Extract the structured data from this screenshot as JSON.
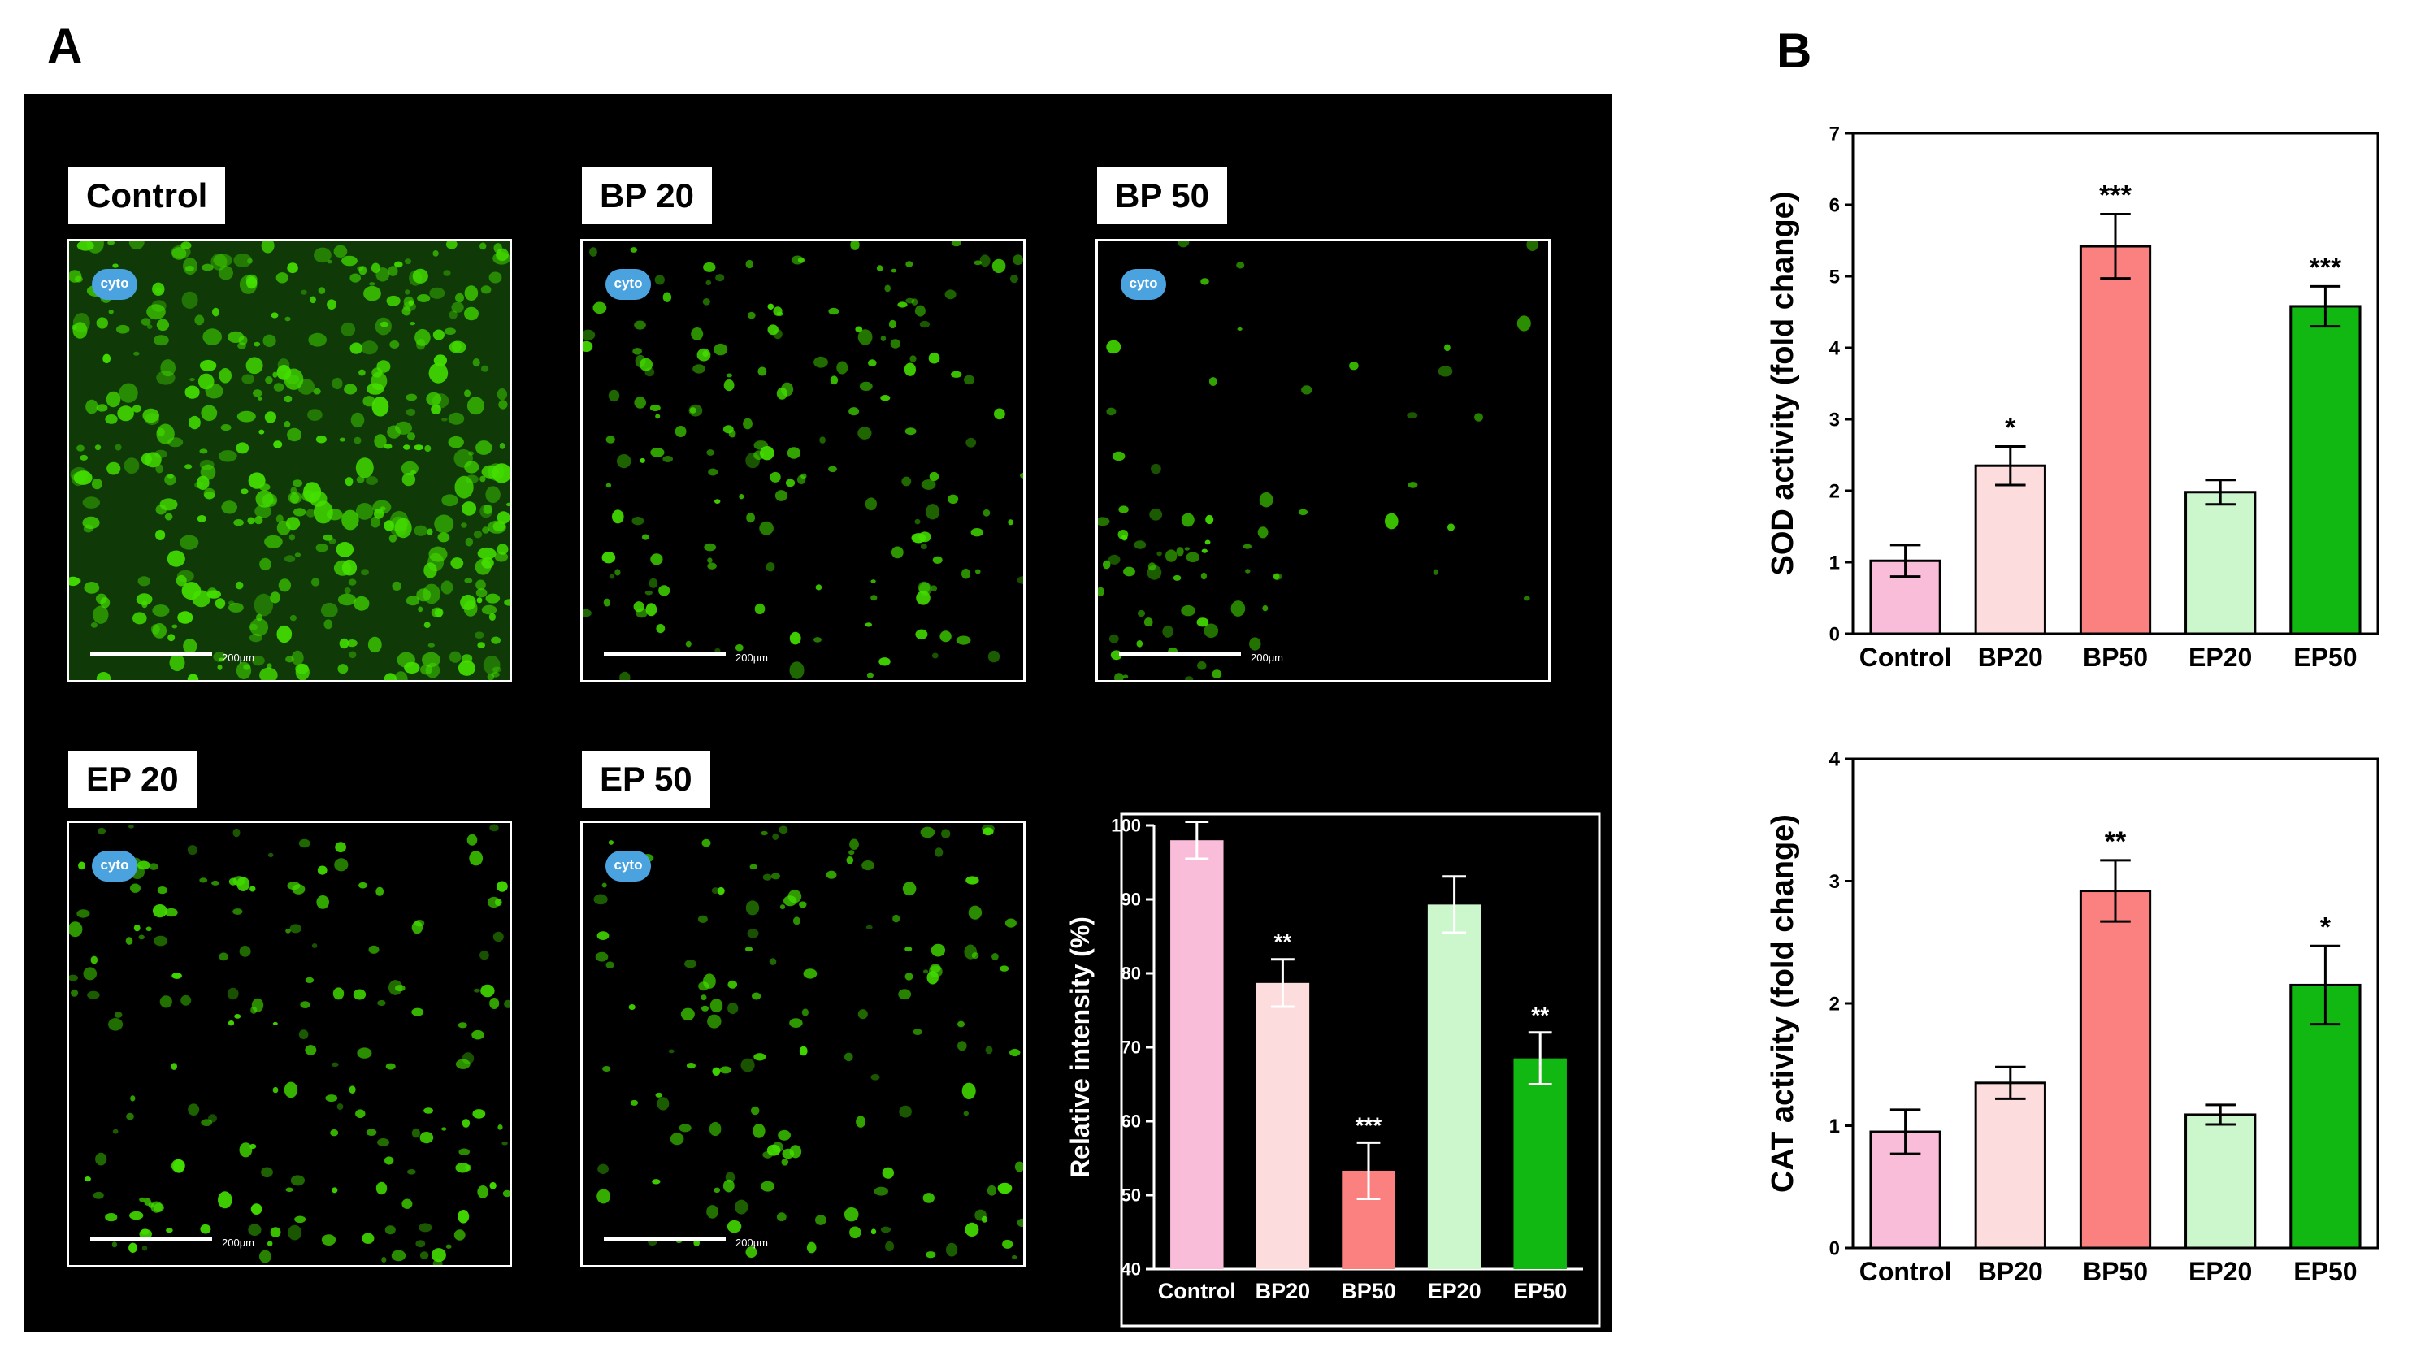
{
  "panel_labels": {
    "a": "A",
    "b": "B"
  },
  "micrographs": [
    {
      "label": "Control",
      "logo": "cyto",
      "scale": "200μm",
      "density": "high"
    },
    {
      "label": "BP 20",
      "logo": "cyto",
      "scale": "200μm",
      "density": "medium"
    },
    {
      "label": "BP 50",
      "logo": "cyto",
      "scale": "200μm",
      "density": "low"
    },
    {
      "label": "EP 20",
      "logo": "cyto",
      "scale": "200μm",
      "density": "medium"
    },
    {
      "label": "EP 50",
      "logo": "cyto",
      "scale": "200μm",
      "density": "medium-low"
    }
  ],
  "colors": {
    "Control": "#f9bcd9",
    "BP20": "#fcdcdc",
    "BP50": "#fb8080",
    "EP20": "#ccf7cc",
    "EP50": "#11b811",
    "micro_green": "#44e000"
  },
  "chart_data": [
    {
      "type": "bar",
      "categories": [
        "Control",
        "BP20",
        "BP50",
        "EP20",
        "EP50"
      ],
      "values": [
        98,
        78.7,
        53.3,
        89.3,
        68.5
      ],
      "errors": [
        2.5,
        3.2,
        3.8,
        3.8,
        3.5
      ],
      "significance": [
        "",
        "**",
        "***",
        "",
        "**"
      ],
      "ylabel": "Relative intensity (%)",
      "xlabel": "",
      "ylim": [
        40,
        100
      ],
      "yticks": [
        40,
        50,
        60,
        70,
        80,
        90,
        100
      ],
      "theme": "dark"
    },
    {
      "type": "bar",
      "categories": [
        "Control",
        "BP20",
        "BP50",
        "EP20",
        "EP50"
      ],
      "values": [
        1.02,
        2.35,
        5.42,
        1.98,
        4.58
      ],
      "errors": [
        0.22,
        0.27,
        0.45,
        0.17,
        0.28
      ],
      "significance": [
        "",
        "*",
        "***",
        "",
        "***"
      ],
      "ylabel": "SOD activity (fold change)",
      "xlabel": "",
      "ylim": [
        0,
        7
      ],
      "yticks": [
        0,
        1,
        2,
        3,
        4,
        5,
        6,
        7
      ],
      "theme": "light"
    },
    {
      "type": "bar",
      "categories": [
        "Control",
        "BP20",
        "BP50",
        "EP20",
        "EP50"
      ],
      "values": [
        0.95,
        1.35,
        2.92,
        1.09,
        2.15
      ],
      "errors": [
        0.18,
        0.13,
        0.25,
        0.08,
        0.32
      ],
      "significance": [
        "",
        "",
        "**",
        "",
        "*"
      ],
      "ylabel": "CAT activity (fold change)",
      "xlabel": "",
      "ylim": [
        0,
        4
      ],
      "yticks": [
        0,
        1,
        2,
        3,
        4
      ],
      "theme": "light"
    }
  ]
}
